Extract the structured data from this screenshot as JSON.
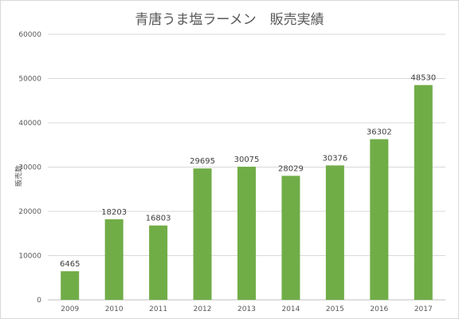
{
  "chart_data": {
    "type": "bar",
    "title": "青唐うま塩ラーメン　販売実績",
    "ylabel": "販売数",
    "xlabel": "",
    "categories": [
      "2009",
      "2010",
      "2011",
      "2012",
      "2013",
      "2014",
      "2015",
      "2016",
      "2017"
    ],
    "series": [
      {
        "values": [
          6465,
          18203,
          16803,
          29695,
          30075,
          28029,
          30376,
          36302,
          48530
        ]
      }
    ],
    "ylim": [
      0,
      60000
    ],
    "yticks": [
      0,
      10000,
      20000,
      30000,
      40000,
      50000,
      60000
    ],
    "grid": true,
    "legend": "none",
    "colors": {
      "bar": "#70ad47",
      "grid": "#d9d9d9",
      "axis": "#bfbfbf"
    }
  }
}
